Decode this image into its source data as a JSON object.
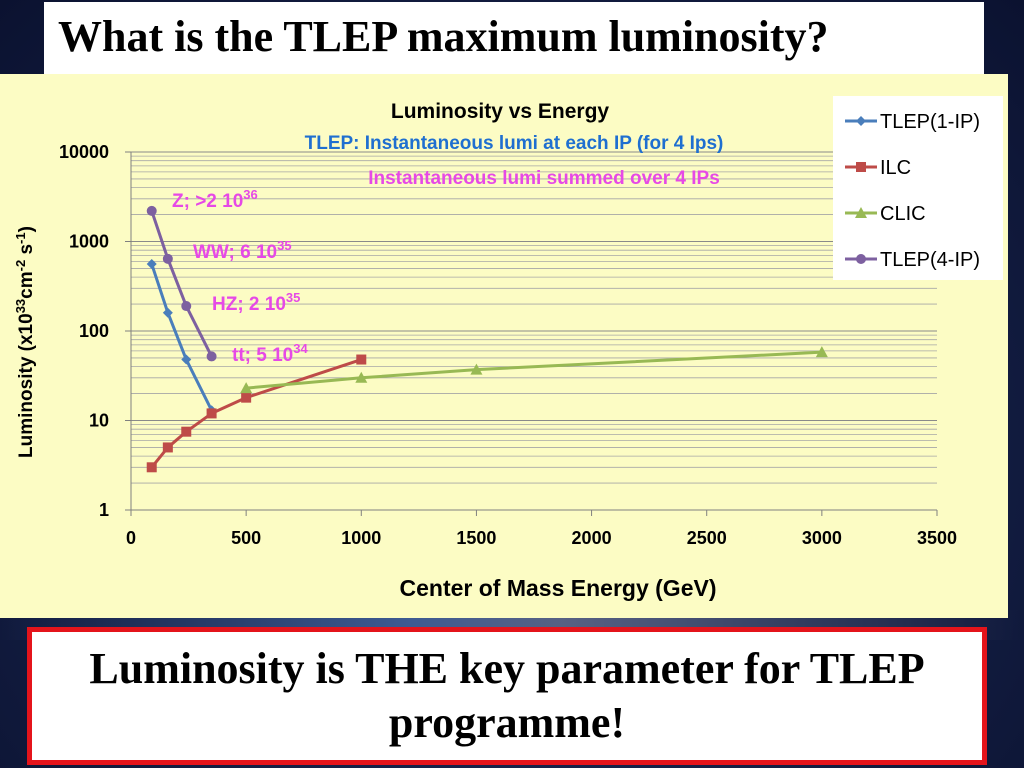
{
  "slide": {
    "title": "What is the TLEP maximum luminosity?",
    "conclusion": "Luminosity is THE key parameter for TLEP programme!"
  },
  "chart_data": {
    "type": "line",
    "title": "Luminosity vs Energy",
    "subtitle_1": "TLEP: Instantaneous lumi at each IP (for 4 Ips)",
    "subtitle_2": "Instantaneous lumi summed over 4 IPs",
    "xlabel": "Center of Mass Energy (GeV)",
    "ylabel_parts": [
      "Luminosity (x10",
      "33",
      "cm",
      "-2",
      " s",
      "-1",
      ")"
    ],
    "x_ticks": [
      "0",
      "500",
      "1000",
      "1500",
      "2000",
      "2500",
      "3000",
      "3500"
    ],
    "y_ticks": [
      "1",
      "10",
      "100",
      "1000",
      "10000"
    ],
    "xlim": [
      0,
      3500
    ],
    "ylim": [
      1,
      10000
    ],
    "yscale": "log",
    "grid": true,
    "legend_position": "top-right",
    "colors": {
      "plot_bg": "#fcfcc4",
      "tlep1": "#4a7ebb",
      "ilc": "#be4b48",
      "clic": "#98b954",
      "tlep4": "#7d60a0",
      "annotation": "#e649e6",
      "subtitle_1": "#1f6fd0"
    },
    "series": [
      {
        "name": "TLEP(1-IP)",
        "marker": "diamond",
        "color": "#4a7ebb",
        "x": [
          90,
          160,
          240,
          350
        ],
        "y": [
          560,
          160,
          48,
          13
        ]
      },
      {
        "name": "ILC",
        "marker": "square",
        "color": "#be4b48",
        "x": [
          90,
          160,
          240,
          350,
          500,
          1000
        ],
        "y": [
          3,
          5,
          7.5,
          12,
          18,
          48
        ]
      },
      {
        "name": "CLIC",
        "marker": "triangle",
        "color": "#98b954",
        "x": [
          500,
          1000,
          1500,
          3000
        ],
        "y": [
          23,
          30,
          37,
          58
        ]
      },
      {
        "name": "TLEP(4-IP)",
        "marker": "circle",
        "color": "#7d60a0",
        "x": [
          90,
          160,
          240,
          350
        ],
        "y": [
          2200,
          640,
          190,
          52
        ]
      }
    ],
    "annotations": [
      {
        "base": "Z; >2 10",
        "exp": "36"
      },
      {
        "base": "WW; 6 10",
        "exp": "35"
      },
      {
        "base": "HZ; 2 10",
        "exp": "35"
      },
      {
        "base": "tt; 5 10",
        "exp": "34"
      }
    ]
  }
}
